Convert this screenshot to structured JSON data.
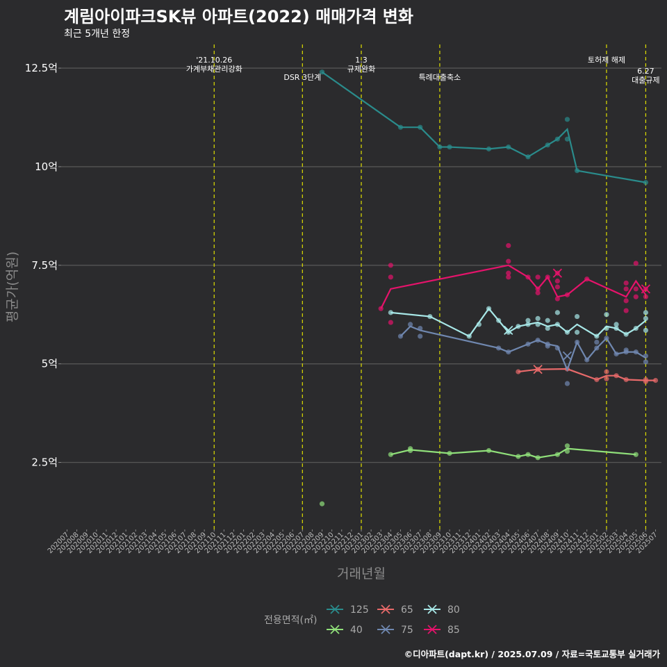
{
  "title": "계림아이파크SK뷰 아파트(2022) 매매가격 변화",
  "subtitle": "최근 5개년 한정",
  "caption": "©디아파트(dapt.kr) / 2025.07.09 / 자료=국토교통부 실거래가",
  "chart_data": {
    "type": "line",
    "xlabel": "거래년월",
    "ylabel": "평균가(억원)",
    "ylim": [
      0.8,
      13.1
    ],
    "yticks": [
      2.5,
      5,
      7.5,
      10,
      12.5
    ],
    "ytick_labels": [
      "2.5억",
      "5억",
      "7.5억",
      "10억",
      "12.5억"
    ],
    "x_categories": [
      "202007",
      "202008",
      "202009",
      "202010",
      "202011",
      "202012",
      "202101",
      "202102",
      "202103",
      "202104",
      "202105",
      "202106",
      "202107",
      "202108",
      "202109",
      "202110",
      "202111",
      "202112",
      "202201",
      "202202",
      "202203",
      "202204",
      "202205",
      "202206",
      "202207",
      "202208",
      "202209",
      "202210",
      "202211",
      "202212",
      "202301",
      "202302",
      "202303",
      "202304",
      "202305",
      "202306",
      "202307",
      "202308",
      "202309",
      "202310",
      "202311",
      "202312",
      "202401",
      "202402",
      "202403",
      "202404",
      "202405",
      "202406",
      "202407",
      "202408",
      "202409",
      "202410",
      "202411",
      "202412",
      "202501",
      "202502",
      "202503",
      "202504",
      "202505",
      "202506",
      "202507"
    ],
    "events": [
      {
        "x": "202110",
        "lines": [
          "'21.10.26",
          "가계부채관리강화"
        ],
        "level": 0
      },
      {
        "x": "202207",
        "lines": [
          "DSR 3단계"
        ],
        "level": 1
      },
      {
        "x": "202301",
        "lines": [
          "1.3",
          "규제완화"
        ],
        "level": 0
      },
      {
        "x": "202309",
        "lines": [
          "특례대출축소"
        ],
        "level": 1
      },
      {
        "x": "202502",
        "lines": [
          "토허제 해제"
        ],
        "level": 0
      },
      {
        "x": "202506",
        "lines": [
          "6.27",
          "대출규제"
        ],
        "level": 2
      }
    ],
    "series": [
      {
        "name": "125",
        "color": "#2a8c8c",
        "line": [
          [
            "202209",
            12.4
          ],
          [
            "202305",
            11.0
          ],
          [
            "202307",
            11.0
          ],
          [
            "202309",
            10.5
          ],
          [
            "202310",
            10.5
          ],
          [
            "202402",
            10.45
          ],
          [
            "202404",
            10.5
          ],
          [
            "202406",
            10.25
          ],
          [
            "202408",
            10.55
          ],
          [
            "202409",
            10.7
          ],
          [
            "202410",
            10.95
          ],
          [
            "202411",
            9.9
          ],
          [
            "202506",
            9.6
          ]
        ],
        "points": [
          [
            "202209",
            12.4
          ],
          [
            "202305",
            11.0
          ],
          [
            "202307",
            11.0
          ],
          [
            "202309",
            10.5
          ],
          [
            "202310",
            10.5
          ],
          [
            "202402",
            10.45
          ],
          [
            "202404",
            10.5
          ],
          [
            "202406",
            10.25
          ],
          [
            "202408",
            10.55
          ],
          [
            "202409",
            10.7
          ],
          [
            "202410",
            11.2
          ],
          [
            "202410",
            10.7
          ],
          [
            "202411",
            9.9
          ],
          [
            "202506",
            9.6
          ]
        ],
        "cancels": []
      },
      {
        "name": "40",
        "color": "#90e07a",
        "line": [
          [
            "202304",
            2.7
          ],
          [
            "202306",
            2.82
          ],
          [
            "202310",
            2.73
          ],
          [
            "202402",
            2.8
          ],
          [
            "202405",
            2.65
          ],
          [
            "202406",
            2.7
          ],
          [
            "202407",
            2.62
          ],
          [
            "202409",
            2.7
          ],
          [
            "202410",
            2.85
          ],
          [
            "202505",
            2.7
          ]
        ],
        "points": [
          [
            "202209",
            1.45
          ],
          [
            "202304",
            2.7
          ],
          [
            "202306",
            2.85
          ],
          [
            "202306",
            2.8
          ],
          [
            "202310",
            2.73
          ],
          [
            "202402",
            2.8
          ],
          [
            "202405",
            2.65
          ],
          [
            "202406",
            2.7
          ],
          [
            "202407",
            2.62
          ],
          [
            "202409",
            2.7
          ],
          [
            "202410",
            2.92
          ],
          [
            "202410",
            2.78
          ],
          [
            "202505",
            2.7
          ]
        ],
        "cancels": []
      },
      {
        "name": "65",
        "color": "#e86a6a",
        "line": [
          [
            "202405",
            4.8
          ],
          [
            "202407",
            4.86
          ],
          [
            "202410",
            4.87
          ],
          [
            "202501",
            4.6
          ],
          [
            "202502",
            4.7
          ],
          [
            "202503",
            4.7
          ],
          [
            "202504",
            4.6
          ],
          [
            "202506",
            4.58
          ],
          [
            "202507",
            4.58
          ]
        ],
        "points": [
          [
            "202405",
            4.8
          ],
          [
            "202407",
            4.86
          ],
          [
            "202410",
            4.87
          ],
          [
            "202501",
            4.6
          ],
          [
            "202502",
            4.8
          ],
          [
            "202502",
            4.62
          ],
          [
            "202503",
            4.7
          ],
          [
            "202504",
            4.6
          ],
          [
            "202506",
            4.6
          ],
          [
            "202506",
            4.55
          ],
          [
            "202507",
            4.58
          ]
        ],
        "cancels": [
          [
            "202407",
            4.86
          ]
        ]
      },
      {
        "name": "75",
        "color": "#7088b0",
        "line": [
          [
            "202305",
            5.7
          ],
          [
            "202306",
            5.95
          ],
          [
            "202307",
            5.85
          ],
          [
            "202403",
            5.4
          ],
          [
            "202404",
            5.3
          ],
          [
            "202406",
            5.5
          ],
          [
            "202407",
            5.6
          ],
          [
            "202408",
            5.5
          ],
          [
            "202409",
            5.45
          ],
          [
            "202410",
            4.85
          ],
          [
            "202411",
            5.55
          ],
          [
            "202412",
            5.1
          ],
          [
            "202501",
            5.4
          ],
          [
            "202502",
            5.65
          ],
          [
            "202503",
            5.25
          ],
          [
            "202504",
            5.3
          ],
          [
            "202505",
            5.3
          ],
          [
            "202506",
            5.15
          ]
        ],
        "points": [
          [
            "202305",
            5.7
          ],
          [
            "202306",
            6.0
          ],
          [
            "202307",
            5.9
          ],
          [
            "202307",
            5.7
          ],
          [
            "202403",
            5.4
          ],
          [
            "202404",
            5.3
          ],
          [
            "202406",
            5.5
          ],
          [
            "202407",
            5.6
          ],
          [
            "202408",
            5.5
          ],
          [
            "202408",
            5.45
          ],
          [
            "202409",
            5.4
          ],
          [
            "202410",
            4.5
          ],
          [
            "202411",
            5.55
          ],
          [
            "202412",
            5.1
          ],
          [
            "202501",
            5.4
          ],
          [
            "202501",
            5.55
          ],
          [
            "202502",
            5.65
          ],
          [
            "202503",
            5.25
          ],
          [
            "202504",
            5.3
          ],
          [
            "202504",
            5.35
          ],
          [
            "202505",
            5.3
          ],
          [
            "202506",
            5.2
          ],
          [
            "202506",
            5.05
          ]
        ],
        "cancels": [
          [
            "202410",
            5.2
          ]
        ]
      },
      {
        "name": "80",
        "color": "#a8e8e8",
        "line": [
          [
            "202304",
            6.3
          ],
          [
            "202308",
            6.2
          ],
          [
            "202312",
            5.7
          ],
          [
            "202402",
            6.4
          ],
          [
            "202403",
            6.1
          ],
          [
            "202404",
            5.8
          ],
          [
            "202405",
            5.95
          ],
          [
            "202407",
            6.05
          ],
          [
            "202408",
            5.95
          ],
          [
            "202409",
            6.0
          ],
          [
            "202410",
            5.8
          ],
          [
            "202411",
            6.0
          ],
          [
            "202501",
            5.7
          ],
          [
            "202502",
            5.95
          ],
          [
            "202503",
            5.9
          ],
          [
            "202504",
            5.75
          ],
          [
            "202505",
            5.9
          ],
          [
            "202506",
            6.1
          ]
        ],
        "points": [
          [
            "202304",
            6.3
          ],
          [
            "202308",
            6.2
          ],
          [
            "202312",
            5.7
          ],
          [
            "202401",
            6.0
          ],
          [
            "202402",
            6.4
          ],
          [
            "202403",
            6.1
          ],
          [
            "202404",
            5.8
          ],
          [
            "202405",
            5.95
          ],
          [
            "202406",
            6.1
          ],
          [
            "202406",
            6.0
          ],
          [
            "202407",
            6.15
          ],
          [
            "202407",
            6.0
          ],
          [
            "202408",
            6.1
          ],
          [
            "202408",
            5.9
          ],
          [
            "202409",
            6.3
          ],
          [
            "202409",
            6.0
          ],
          [
            "202410",
            5.8
          ],
          [
            "202411",
            6.2
          ],
          [
            "202411",
            5.8
          ],
          [
            "202501",
            5.7
          ],
          [
            "202502",
            5.9
          ],
          [
            "202502",
            6.25
          ],
          [
            "202503",
            5.9
          ],
          [
            "202503",
            6.0
          ],
          [
            "202504",
            5.75
          ],
          [
            "202505",
            5.9
          ],
          [
            "202506",
            6.3
          ],
          [
            "202506",
            5.85
          ],
          [
            "202506",
            6.15
          ]
        ],
        "cancels": [
          [
            "202404",
            5.85
          ]
        ]
      },
      {
        "name": "85",
        "color": "#e6136b",
        "line": [
          [
            "202303",
            6.4
          ],
          [
            "202304",
            6.9
          ],
          [
            "202404",
            7.5
          ],
          [
            "202406",
            7.2
          ],
          [
            "202407",
            6.9
          ],
          [
            "202408",
            7.2
          ],
          [
            "202409",
            6.7
          ],
          [
            "202410",
            6.75
          ],
          [
            "202412",
            7.15
          ],
          [
            "202504",
            6.7
          ],
          [
            "202505",
            7.1
          ],
          [
            "202506",
            6.75
          ]
        ],
        "points": [
          [
            "202303",
            6.4
          ],
          [
            "202304",
            7.5
          ],
          [
            "202304",
            7.2
          ],
          [
            "202304",
            6.05
          ],
          [
            "202404",
            8.0
          ],
          [
            "202404",
            7.6
          ],
          [
            "202404",
            7.3
          ],
          [
            "202404",
            7.2
          ],
          [
            "202406",
            7.2
          ],
          [
            "202407",
            7.2
          ],
          [
            "202407",
            6.9
          ],
          [
            "202407",
            6.8
          ],
          [
            "202408",
            7.2
          ],
          [
            "202409",
            7.3
          ],
          [
            "202409",
            7.1
          ],
          [
            "202409",
            6.95
          ],
          [
            "202409",
            6.65
          ],
          [
            "202410",
            6.75
          ],
          [
            "202412",
            7.15
          ],
          [
            "202504",
            7.05
          ],
          [
            "202504",
            6.9
          ],
          [
            "202504",
            6.6
          ],
          [
            "202504",
            6.35
          ],
          [
            "202505",
            7.55
          ],
          [
            "202505",
            6.9
          ],
          [
            "202505",
            6.7
          ],
          [
            "202506",
            6.9
          ],
          [
            "202506",
            6.7
          ]
        ],
        "cancels": [
          [
            "202409",
            7.3
          ],
          [
            "202506",
            6.9
          ]
        ]
      }
    ],
    "legend": {
      "title": "전용면적(㎡)",
      "entries": [
        "125",
        "65",
        "80",
        "40",
        "75",
        "85"
      ]
    }
  }
}
